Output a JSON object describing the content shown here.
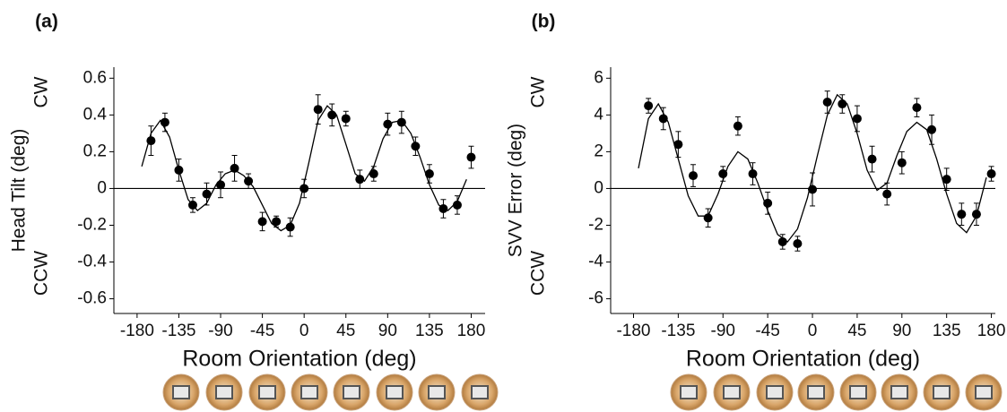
{
  "chart_data": [
    {
      "type": "scatter",
      "panel_label": "(a)",
      "x_label": "Room Orientation (deg)",
      "y_label": "Head Tilt (deg)",
      "y_top_note": "CW",
      "y_bottom_note": "CCW",
      "xlim": [
        -205,
        195
      ],
      "ylim": [
        -0.68,
        0.66
      ],
      "xticks": [
        -180,
        -135,
        -90,
        -45,
        0,
        45,
        90,
        135,
        180
      ],
      "yticks": [
        -0.6,
        -0.4,
        -0.2,
        0,
        0.2,
        0.4,
        0.6
      ],
      "hline": 0,
      "color": "#000000",
      "points": {
        "x": [
          -165,
          -150,
          -135,
          -120,
          -105,
          -90,
          -75,
          -60,
          -45,
          -30,
          -15,
          0,
          15,
          30,
          45,
          60,
          75,
          90,
          105,
          120,
          135,
          150,
          165,
          180
        ],
        "values": [
          0.26,
          0.36,
          0.1,
          -0.09,
          -0.03,
          0.02,
          0.11,
          0.04,
          -0.18,
          -0.18,
          -0.21,
          0.0,
          0.43,
          0.4,
          0.38,
          0.05,
          0.08,
          0.35,
          0.36,
          0.23,
          0.08,
          -0.11,
          -0.09,
          0.17
        ],
        "errors": [
          0.08,
          0.05,
          0.06,
          0.04,
          0.06,
          0.07,
          0.07,
          0.04,
          0.05,
          0.03,
          0.05,
          0.05,
          0.08,
          0.06,
          0.04,
          0.05,
          0.04,
          0.06,
          0.06,
          0.05,
          0.05,
          0.05,
          0.05,
          0.06
        ]
      },
      "fit": {
        "x": [
          -175,
          -165,
          -155,
          -145,
          -135,
          -125,
          -115,
          -105,
          -95,
          -85,
          -75,
          -65,
          -55,
          -45,
          -35,
          -25,
          -15,
          -5,
          5,
          15,
          25,
          35,
          45,
          55,
          65,
          75,
          85,
          95,
          105,
          115,
          125,
          135,
          145,
          155,
          165,
          175
        ],
        "values": [
          0.12,
          0.3,
          0.37,
          0.28,
          0.1,
          -0.06,
          -0.12,
          -0.08,
          0.02,
          0.08,
          0.1,
          0.07,
          0.01,
          -0.09,
          -0.19,
          -0.23,
          -0.2,
          -0.08,
          0.14,
          0.37,
          0.45,
          0.4,
          0.24,
          0.08,
          0.04,
          0.12,
          0.27,
          0.36,
          0.37,
          0.3,
          0.17,
          0.02,
          -0.09,
          -0.12,
          -0.07,
          0.05
        ]
      }
    },
    {
      "type": "scatter",
      "panel_label": "(b)",
      "x_label": "Room Orientation (deg)",
      "y_label": "SVV Error (deg)",
      "y_top_note": "CW",
      "y_bottom_note": "CCW",
      "xlim": [
        -203,
        184
      ],
      "ylim": [
        -6.8,
        6.6
      ],
      "xticks": [
        -180,
        -135,
        -90,
        -45,
        0,
        45,
        90,
        135,
        180
      ],
      "yticks": [
        -6,
        -4,
        -2,
        0,
        2,
        4,
        6
      ],
      "hline": 0,
      "color": "#000000",
      "points": {
        "x": [
          -165,
          -150,
          -135,
          -120,
          -105,
          -90,
          -75,
          -60,
          -45,
          -30,
          -15,
          0,
          15,
          30,
          45,
          60,
          75,
          90,
          105,
          120,
          135,
          150,
          165,
          180
        ],
        "values": [
          4.5,
          3.8,
          2.4,
          0.7,
          -1.6,
          0.8,
          3.4,
          0.8,
          -0.8,
          -2.9,
          -3.0,
          -0.05,
          4.7,
          4.6,
          3.8,
          1.6,
          -0.3,
          1.4,
          4.4,
          3.2,
          0.5,
          -1.4,
          -1.4,
          0.8
        ],
        "errors": [
          0.4,
          0.6,
          0.7,
          0.6,
          0.5,
          0.4,
          0.5,
          0.6,
          0.6,
          0.4,
          0.4,
          0.9,
          0.6,
          0.5,
          0.7,
          0.7,
          0.6,
          0.6,
          0.5,
          0.8,
          0.6,
          0.6,
          0.6,
          0.4
        ]
      },
      "fit": {
        "x": [
          -175,
          -165,
          -155,
          -145,
          -135,
          -125,
          -115,
          -105,
          -95,
          -85,
          -75,
          -65,
          -55,
          -45,
          -35,
          -25,
          -15,
          -5,
          5,
          15,
          25,
          35,
          45,
          55,
          65,
          75,
          85,
          95,
          105,
          115,
          125,
          135,
          145,
          155,
          165,
          175
        ],
        "values": [
          1.1,
          3.8,
          4.6,
          3.6,
          1.6,
          -0.4,
          -1.5,
          -1.5,
          -0.3,
          1.2,
          2.0,
          1.6,
          0.3,
          -1.2,
          -2.5,
          -2.9,
          -2.2,
          -0.5,
          1.8,
          4.0,
          5.1,
          4.6,
          3.0,
          1.0,
          -0.1,
          0.3,
          1.8,
          3.1,
          3.6,
          3.2,
          1.6,
          -0.3,
          -1.9,
          -2.4,
          -1.5,
          0.6
        ]
      }
    }
  ]
}
